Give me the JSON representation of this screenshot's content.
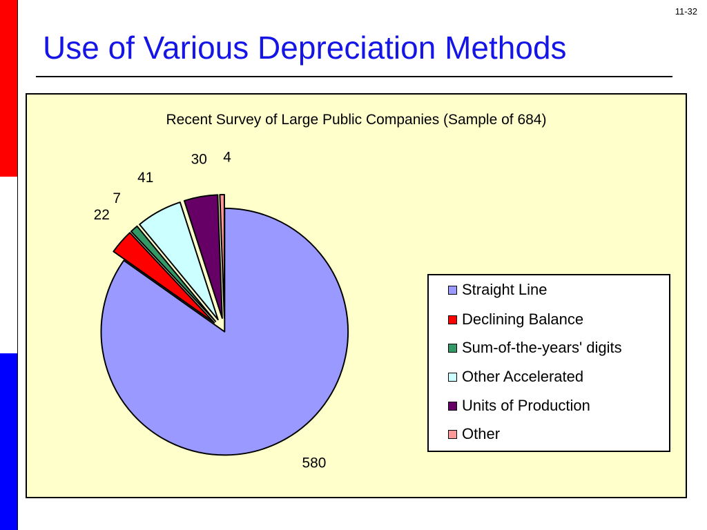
{
  "slide": {
    "number": "11-32",
    "title": "Use of Various Depreciation Methods"
  },
  "side_bar_colors": [
    "#ff0000",
    "#ffffff",
    "#0000ff"
  ],
  "chart_data": {
    "type": "pie",
    "title": "Recent Survey of Large Public Companies (Sample of 684)",
    "exploded": true,
    "series": [
      {
        "name": "Straight Line",
        "value": 580,
        "label": "580",
        "color": "#9999ff"
      },
      {
        "name": "Declining Balance",
        "value": 22,
        "label": "22",
        "color": "#ff0000"
      },
      {
        "name": "Sum-of-the-years' digits",
        "value": 7,
        "label": "7",
        "color": "#339966"
      },
      {
        "name": "Other Accelerated",
        "value": 41,
        "label": "41",
        "color": "#ccffff"
      },
      {
        "name": "Units of Production",
        "value": 30,
        "label": "30",
        "color": "#660066"
      },
      {
        "name": "Other",
        "value": 4,
        "label": "4",
        "color": "#ff9999"
      }
    ],
    "legend_placement": "right"
  }
}
